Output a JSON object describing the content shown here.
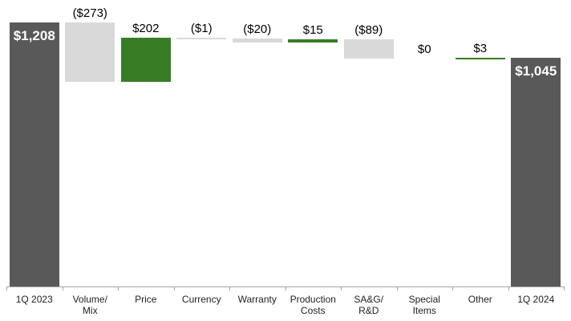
{
  "chart_data": {
    "type": "bar",
    "subtype": "waterfall",
    "title": "",
    "xlabel": "",
    "ylabel": "",
    "ylim": [
      0,
      1250
    ],
    "grid": false,
    "legend": false,
    "categories": [
      "1Q 2023",
      "Volume/\nMix",
      "Price",
      "Currency",
      "Warranty",
      "Production\nCosts",
      "SA&G/\nR&D",
      "Special\nItems",
      "Other",
      "1Q 2024"
    ],
    "values": [
      1208,
      -273,
      202,
      -1,
      -20,
      15,
      -89,
      0,
      3,
      1045
    ],
    "kinds": [
      "total",
      "delta",
      "delta",
      "delta",
      "delta",
      "delta",
      "delta",
      "delta",
      "delta",
      "total"
    ],
    "data_labels": [
      "$1,208",
      "($273)",
      "$202",
      "($1)",
      "($20)",
      "$15",
      "($89)",
      "$0",
      "$3",
      "$1,045"
    ],
    "colors": {
      "total": "#595959",
      "increase": "#377D23",
      "decrease": "#D9D9D9",
      "axis": "#A6A6A6",
      "delta_label_text": "#000000",
      "total_label_text": "#FFFFFF",
      "axis_label_text": "#1F1F1F"
    }
  }
}
